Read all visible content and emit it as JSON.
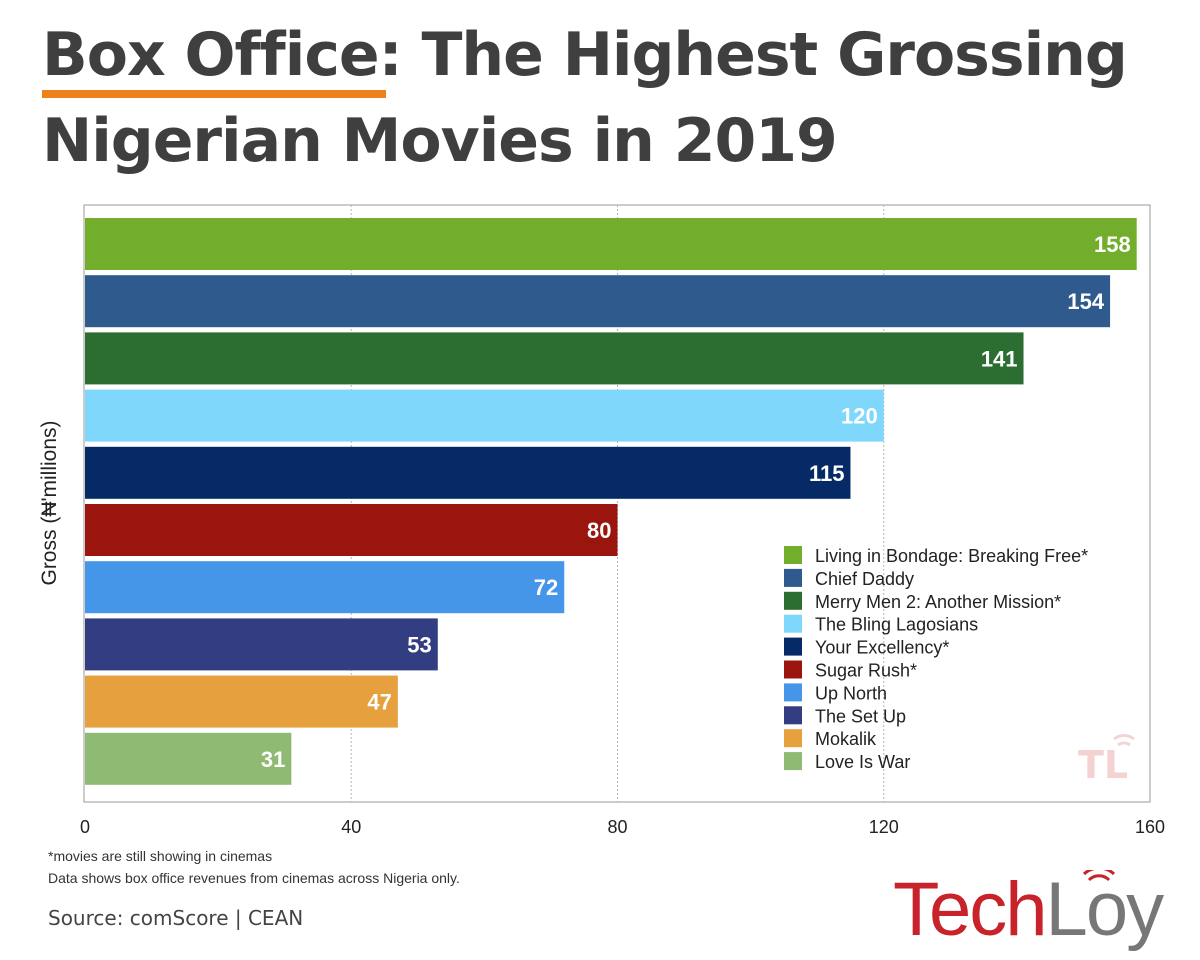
{
  "title": {
    "line1": "Box Office: The Highest Grossing",
    "line2": "Nigerian Movies in 2019"
  },
  "chart_data": {
    "type": "bar",
    "orientation": "horizontal",
    "categories": [
      "Living in Bondage: Breaking Free*",
      "Chief Daddy",
      "Merry Men 2: Another Mission*",
      "The Bling Lagosians",
      "Your Excellency*",
      "Sugar Rush*",
      "Up North",
      "The Set Up",
      "Mokalik",
      "Love Is War"
    ],
    "values": [
      158,
      154,
      141,
      120,
      115,
      80,
      72,
      53,
      47,
      31
    ],
    "colors": [
      "#72ae2c",
      "#2e5a8e",
      "#2c6e31",
      "#7fd8fc",
      "#062a66",
      "#9a150d",
      "#4596e8",
      "#333d81",
      "#e6a03e",
      "#8fba73"
    ],
    "data_labels": [
      "158",
      "154",
      "141",
      "120",
      "115",
      "80",
      "72",
      "53",
      "47",
      "31"
    ],
    "xlim": [
      0,
      160
    ],
    "xticks": [
      "0",
      "40",
      "80",
      "120",
      "160"
    ],
    "ylabel": "Gross (₦'millions)",
    "xlabel": "",
    "grid": "vertical dashed",
    "legend_position": "bottom-right"
  },
  "watermark_text": "TL",
  "footnotes": {
    "line1": "*movies are still showing in cinemas",
    "line2": "Data shows box office revenues from cinemas across Nigeria only."
  },
  "source": "Source: comScore | CEAN",
  "brand": {
    "part1": "Tech",
    "part2": "Loy",
    "red": "#c8222a",
    "grey": "#777777"
  },
  "accent_color": "#f07f1e"
}
